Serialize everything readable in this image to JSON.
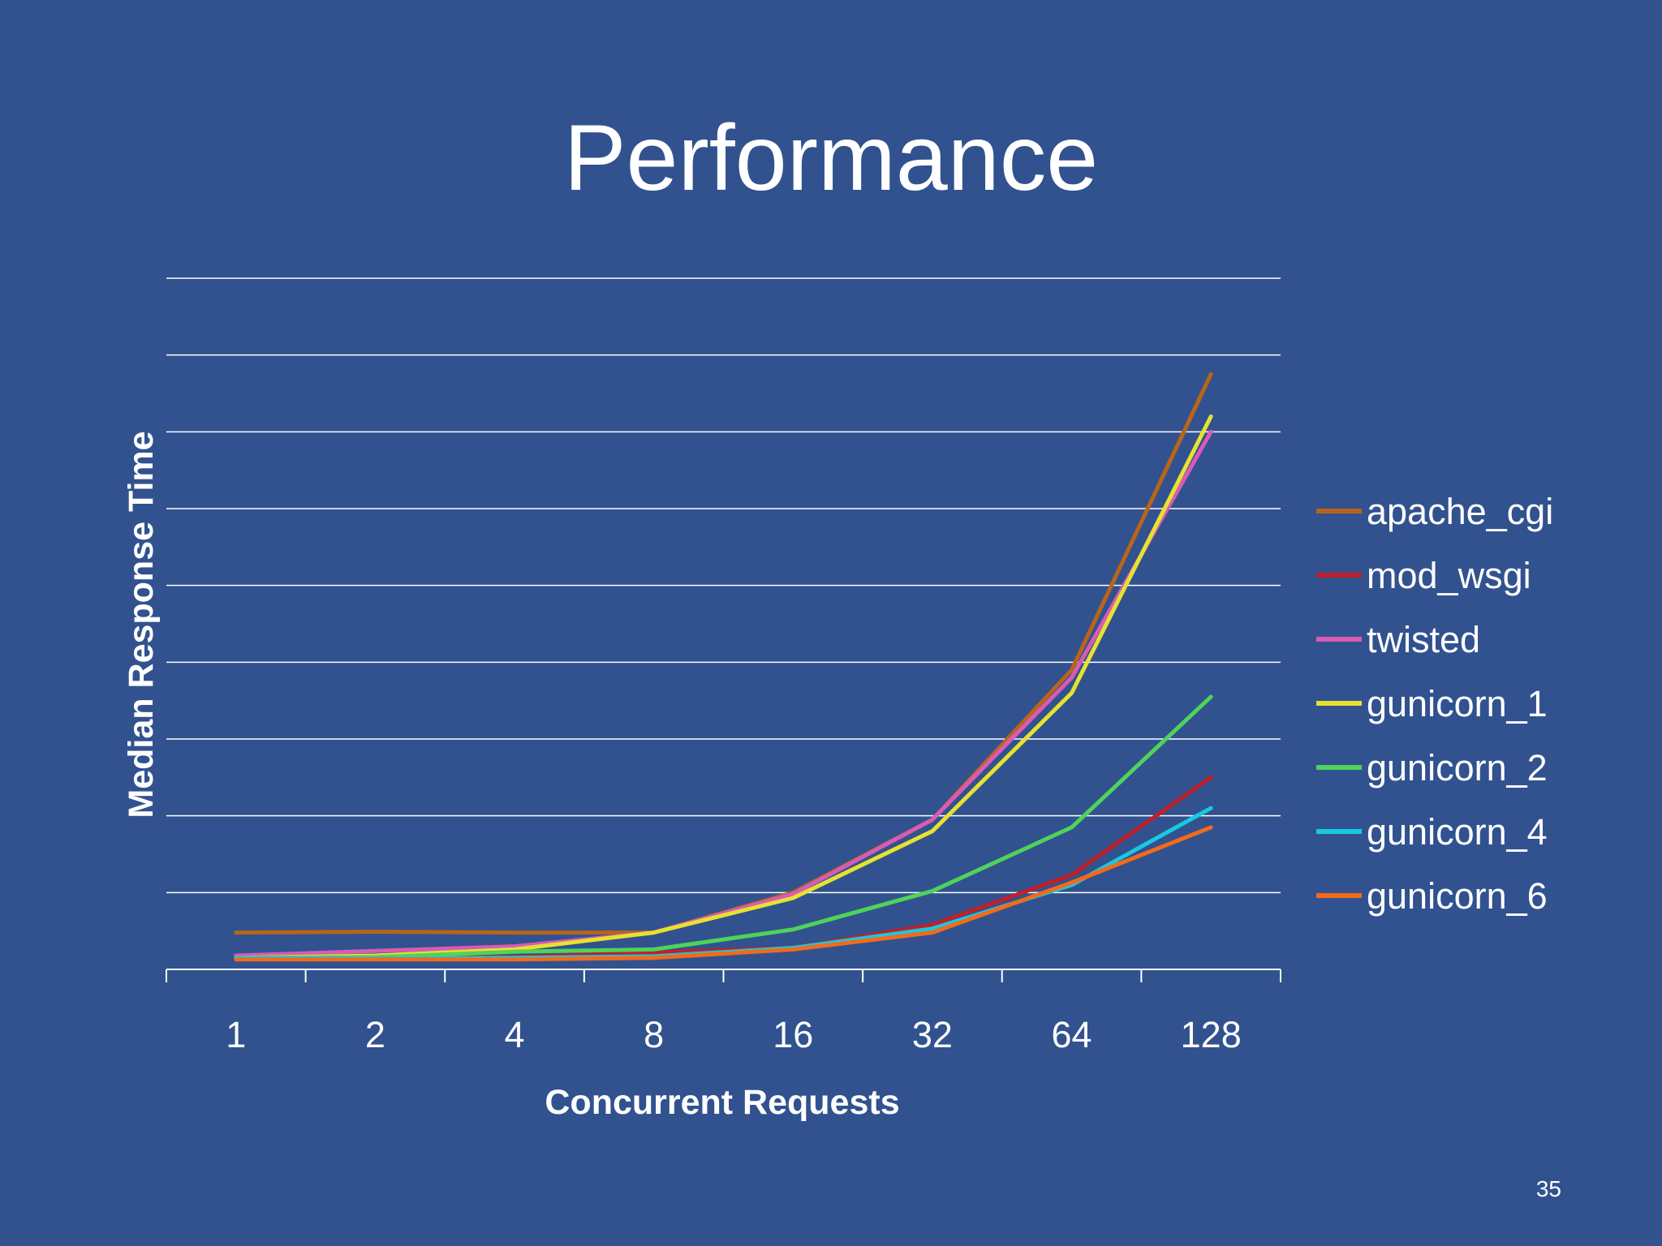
{
  "slide": {
    "title": "Performance",
    "page_number": "35"
  },
  "chart_data": {
    "type": "line",
    "title": "",
    "xlabel": "Concurrent Requests",
    "ylabel": "Median Response Time",
    "categories": [
      "1",
      "2",
      "4",
      "8",
      "16",
      "32",
      "64",
      "128"
    ],
    "ylim": [
      0,
      9
    ],
    "y_tick_labels_shown": false,
    "grid": "horizontal",
    "legend_position": "right",
    "series": [
      {
        "name": "apache_cgi",
        "color": "#b8651b",
        "values": [
          0.48,
          0.49,
          0.48,
          0.48,
          1.0,
          1.95,
          3.9,
          7.75
        ]
      },
      {
        "name": "mod_wsgi",
        "color": "#c0202a",
        "values": [
          0.15,
          0.15,
          0.16,
          0.22,
          0.28,
          0.58,
          1.23,
          2.5
        ]
      },
      {
        "name": "twisted",
        "color": "#d95bb5",
        "values": [
          0.18,
          0.24,
          0.3,
          0.48,
          0.98,
          1.95,
          3.8,
          7.0
        ]
      },
      {
        "name": "gunicorn_1",
        "color": "#e6e22e",
        "values": [
          0.15,
          0.18,
          0.26,
          0.48,
          0.93,
          1.8,
          3.6,
          7.2
        ]
      },
      {
        "name": "gunicorn_2",
        "color": "#4fd35a",
        "values": [
          0.15,
          0.16,
          0.23,
          0.26,
          0.52,
          1.02,
          1.85,
          3.55
        ]
      },
      {
        "name": "gunicorn_4",
        "color": "#18c9e0",
        "values": [
          0.15,
          0.14,
          0.15,
          0.17,
          0.28,
          0.53,
          1.1,
          2.1
        ]
      },
      {
        "name": "gunicorn_6",
        "color": "#f26a1b",
        "values": [
          0.13,
          0.13,
          0.13,
          0.15,
          0.26,
          0.48,
          1.13,
          1.85
        ]
      }
    ]
  }
}
